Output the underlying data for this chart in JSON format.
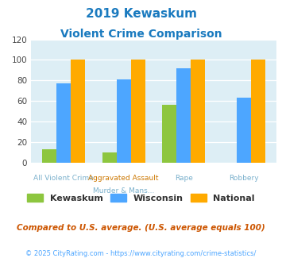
{
  "title_line1": "2019 Kewaskum",
  "title_line2": "Violent Crime Comparison",
  "cat_labels_top": [
    "",
    "Aggravated Assault",
    "",
    ""
  ],
  "cat_labels_bot": [
    "All Violent Crime",
    "Murder & Mans...",
    "Rape",
    "Robbery"
  ],
  "kewaskum": [
    13,
    10,
    56,
    0
  ],
  "wisconsin": [
    77,
    81,
    92,
    63
  ],
  "national": [
    100,
    100,
    100,
    100
  ],
  "bar_colors": {
    "kewaskum": "#8dc63f",
    "wisconsin": "#4da6ff",
    "national": "#ffaa00"
  },
  "ylim": [
    0,
    120
  ],
  "yticks": [
    0,
    20,
    40,
    60,
    80,
    100,
    120
  ],
  "plot_bg": "#ddeef5",
  "footnote1": "Compared to U.S. average. (U.S. average equals 100)",
  "footnote2": "© 2025 CityRating.com - https://www.cityrating.com/crime-statistics/",
  "title_color": "#1a7abf",
  "footnote1_color": "#cc5500",
  "footnote2_color": "#4da6ff",
  "label_top_color": "#cc7700",
  "label_bot_color": "#7ab0cc"
}
